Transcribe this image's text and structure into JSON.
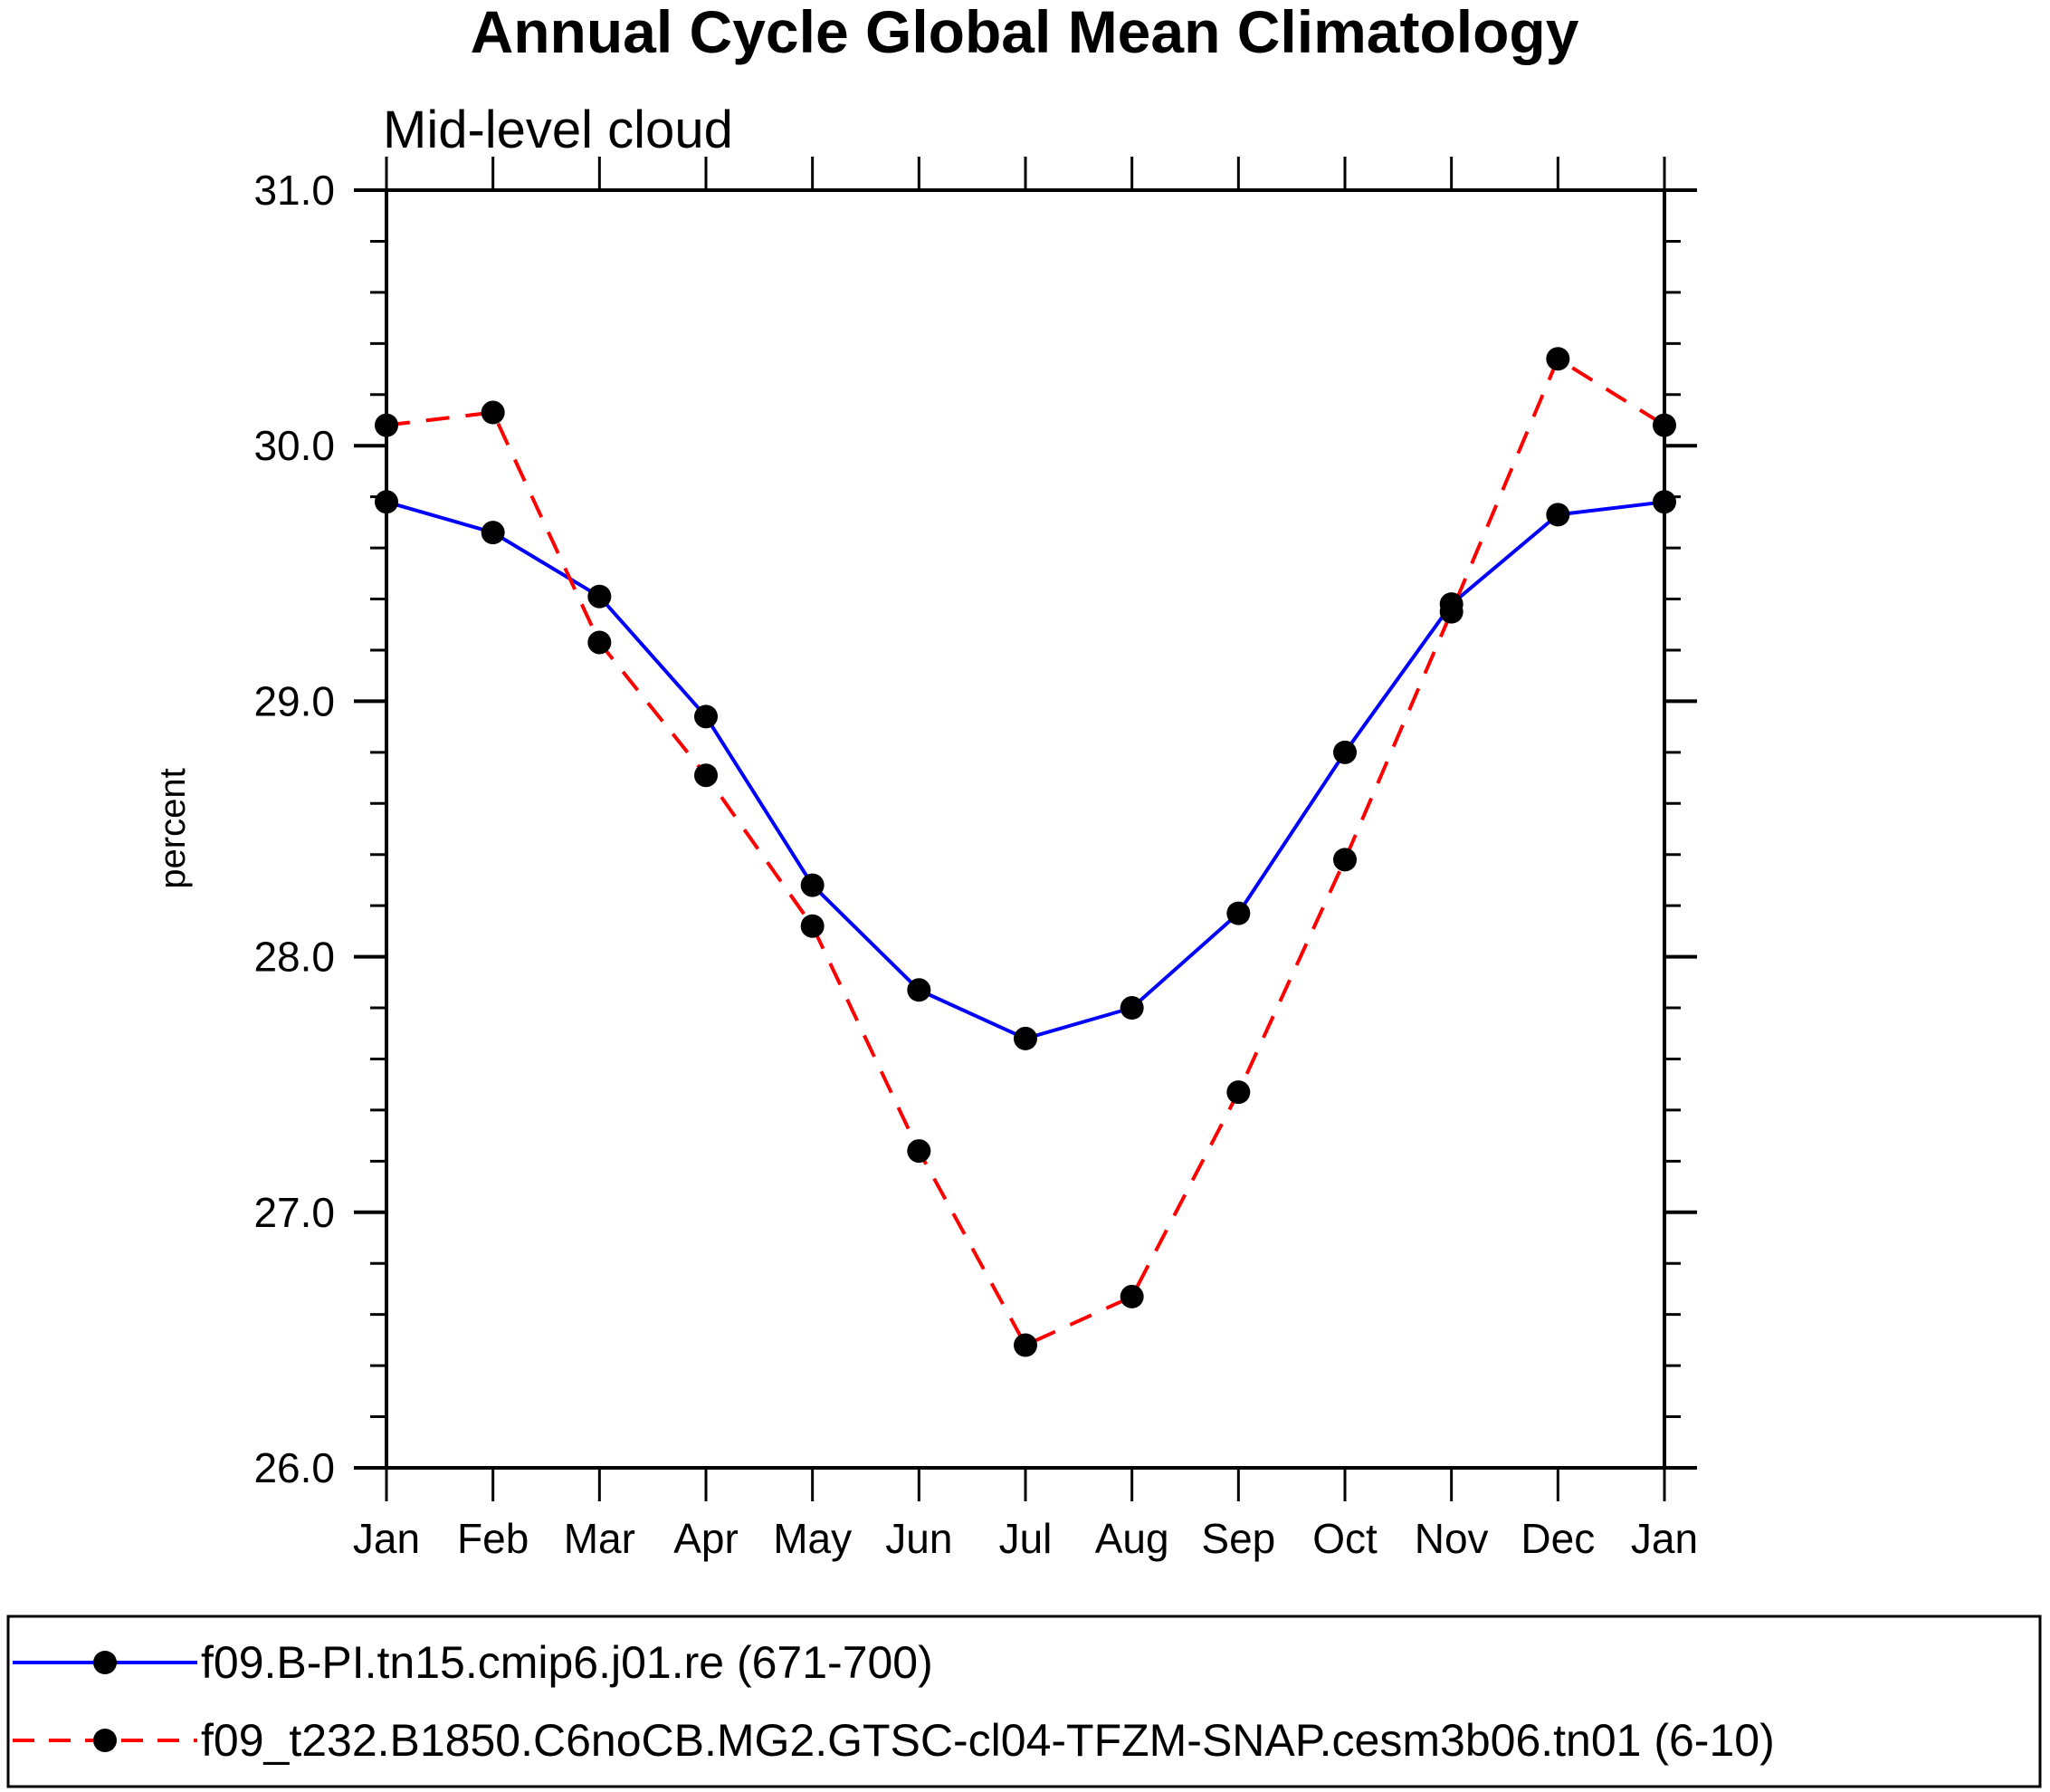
{
  "chart_data": {
    "type": "line",
    "title": "Annual Cycle Global Mean Climatology",
    "subtitle": "Mid-level cloud",
    "xlabel": "",
    "ylabel": "percent",
    "categories": [
      "Jan",
      "Feb",
      "Mar",
      "Apr",
      "May",
      "Jun",
      "Jul",
      "Aug",
      "Sep",
      "Oct",
      "Nov",
      "Dec",
      "Jan"
    ],
    "ylim": [
      26.0,
      31.0
    ],
    "yticks": [
      26.0,
      27.0,
      28.0,
      29.0,
      30.0,
      31.0
    ],
    "ytick_labels": [
      "26.0",
      "27.0",
      "28.0",
      "29.0",
      "30.0",
      "31.0"
    ],
    "y_minor_step": 0.2,
    "grid": false,
    "legend_position": "bottom",
    "series": [
      {
        "name": "f09.B-PI.tn15.cmip6.j01.re (671-700)",
        "color": "#0000ff",
        "line_style": "solid",
        "marker": "filled-circle",
        "marker_color": "#000000",
        "values": [
          29.78,
          29.66,
          29.41,
          28.94,
          28.28,
          27.87,
          27.68,
          27.8,
          28.17,
          28.8,
          29.38,
          29.73,
          29.78
        ]
      },
      {
        "name": "f09_t232.B1850.C6noCB.MG2.GTSC-cl04-TFZM-SNAP.cesm3b06.tn01 (6-10)",
        "color": "#ff0000",
        "line_style": "dashed",
        "marker": "filled-circle",
        "marker_color": "#000000",
        "values": [
          30.08,
          30.13,
          29.23,
          28.71,
          28.12,
          27.24,
          26.48,
          26.67,
          27.47,
          28.38,
          29.35,
          30.34,
          30.08
        ]
      }
    ]
  }
}
